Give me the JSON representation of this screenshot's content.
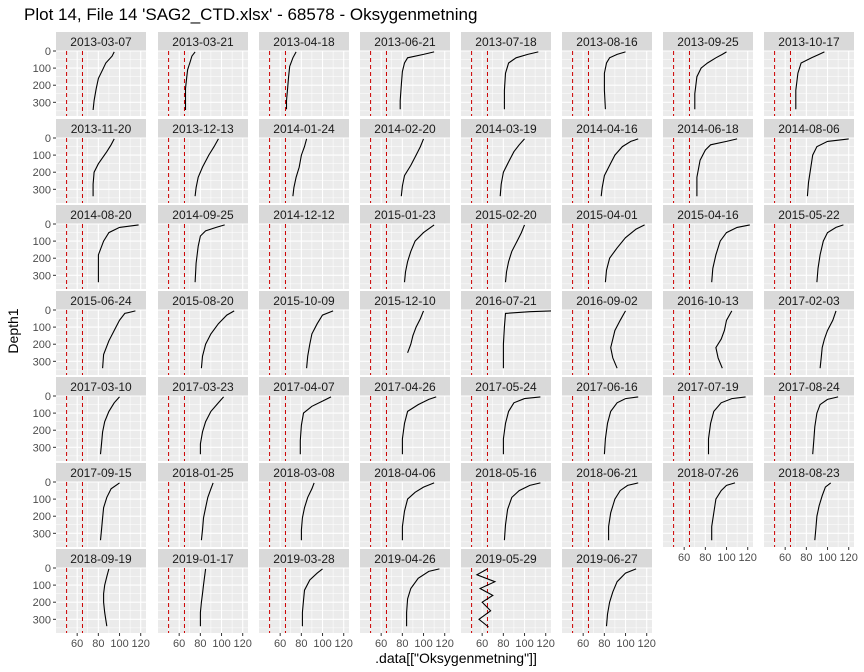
{
  "chart_data": {
    "type": "line",
    "title": "Plot 14, File 14 'SAG2_CTD.xlsx' - 68578  -  Oksygenmetning",
    "xlabel": ".data[[\"Oksygenmetning\"]]",
    "ylabel": "Depth1",
    "xlim": [
      40,
      125
    ],
    "ylim": [
      0,
      380
    ],
    "y_reversed": true,
    "x_ticks": [
      60,
      80,
      100,
      120
    ],
    "y_ticks": [
      0,
      100,
      200,
      300
    ],
    "reference_lines": [
      {
        "x": 50,
        "color": "#cc0000",
        "style": "dashed"
      },
      {
        "x": 65,
        "color": "#cc0000",
        "style": "dashed"
      }
    ],
    "grid": true,
    "layout": {
      "columns": 8,
      "rows": 7
    },
    "colors": {
      "line": "#000000",
      "reference": "#cc0000",
      "panel_bg": "#ebebeb",
      "strip_bg": "#d9d9d9",
      "grid": "#ffffff"
    },
    "panels": [
      {
        "label": "2013-03-07",
        "x": [
          95,
          93,
          87,
          84,
          80,
          78,
          76,
          75
        ],
        "y": [
          5,
          30,
          70,
          110,
          160,
          220,
          290,
          345
        ]
      },
      {
        "label": "2013-03-21",
        "x": [
          75,
          72,
          70,
          68,
          67,
          66,
          66,
          66
        ],
        "y": [
          5,
          30,
          70,
          110,
          160,
          220,
          290,
          345
        ]
      },
      {
        "label": "2013-04-18",
        "x": [
          75,
          72,
          69,
          68,
          67,
          66,
          66
        ],
        "y": [
          5,
          40,
          90,
          150,
          220,
          290,
          340
        ]
      },
      {
        "label": "2013-06-21",
        "x": [
          110,
          100,
          85,
          82,
          80,
          79,
          78,
          78
        ],
        "y": [
          5,
          20,
          40,
          70,
          120,
          200,
          290,
          340
        ]
      },
      {
        "label": "2013-07-18",
        "x": [
          113,
          103,
          92,
          85,
          82,
          81,
          81
        ],
        "y": [
          5,
          20,
          40,
          70,
          130,
          230,
          340
        ]
      },
      {
        "label": "2013-08-16",
        "x": [
          100,
          92,
          85,
          82,
          80,
          80,
          81
        ],
        "y": [
          5,
          20,
          40,
          70,
          130,
          230,
          340
        ]
      },
      {
        "label": "2013-09-25",
        "x": [
          100,
          96,
          90,
          82,
          76,
          72,
          70,
          70
        ],
        "y": [
          5,
          20,
          40,
          70,
          100,
          150,
          250,
          340
        ]
      },
      {
        "label": "2013-10-17",
        "x": [
          97,
          92,
          85,
          75,
          72,
          70,
          70
        ],
        "y": [
          5,
          20,
          40,
          70,
          130,
          230,
          340
        ]
      },
      {
        "label": "2013-11-20",
        "x": [
          95,
          92,
          88,
          80,
          76,
          75,
          75
        ],
        "y": [
          5,
          40,
          80,
          150,
          200,
          270,
          340
        ]
      },
      {
        "label": "2013-12-13",
        "x": [
          97,
          93,
          88,
          82,
          78,
          76,
          75
        ],
        "y": [
          5,
          50,
          100,
          170,
          230,
          290,
          340
        ]
      },
      {
        "label": "2014-01-24",
        "x": [
          85,
          83,
          80,
          78,
          75,
          73,
          72
        ],
        "y": [
          5,
          50,
          100,
          170,
          230,
          290,
          340
        ]
      },
      {
        "label": "2014-02-20",
        "x": [
          100,
          97,
          93,
          88,
          82,
          80,
          79
        ],
        "y": [
          5,
          50,
          100,
          160,
          220,
          280,
          340
        ]
      },
      {
        "label": "2014-03-19",
        "x": [
          100,
          95,
          90,
          85,
          80,
          78,
          77
        ],
        "y": [
          5,
          40,
          80,
          140,
          200,
          270,
          340
        ]
      },
      {
        "label": "2014-04-16",
        "x": [
          112,
          105,
          97,
          90,
          85,
          80,
          78,
          77
        ],
        "y": [
          5,
          20,
          50,
          100,
          160,
          220,
          290,
          340
        ]
      },
      {
        "label": "2014-06-18",
        "x": [
          110,
          100,
          85,
          80,
          75,
          72,
          72
        ],
        "y": [
          5,
          20,
          40,
          70,
          130,
          230,
          340
        ]
      },
      {
        "label": "2014-08-06",
        "x": [
          120,
          100,
          90,
          86,
          84,
          82,
          81
        ],
        "y": [
          5,
          20,
          50,
          100,
          180,
          260,
          340
        ]
      },
      {
        "label": "2014-08-20",
        "x": [
          118,
          100,
          90,
          85,
          80,
          80,
          80
        ],
        "y": [
          5,
          20,
          50,
          100,
          180,
          260,
          340
        ]
      },
      {
        "label": "2014-09-25",
        "x": [
          103,
          95,
          85,
          80,
          78,
          76,
          75
        ],
        "y": [
          5,
          20,
          40,
          70,
          130,
          230,
          340
        ]
      },
      {
        "label": "2014-12-12",
        "x": [],
        "y": []
      },
      {
        "label": "2015-01-23",
        "x": [
          110,
          100,
          92,
          88,
          85,
          83,
          82
        ],
        "y": [
          5,
          50,
          100,
          160,
          220,
          280,
          340
        ]
      },
      {
        "label": "2015-02-20",
        "x": [
          100,
          97,
          93,
          88,
          85,
          83,
          82
        ],
        "y": [
          5,
          50,
          100,
          160,
          220,
          280,
          340
        ]
      },
      {
        "label": "2015-04-01",
        "x": [
          118,
          110,
          100,
          92,
          85,
          82,
          81
        ],
        "y": [
          5,
          30,
          80,
          140,
          200,
          270,
          340
        ]
      },
      {
        "label": "2015-04-16",
        "x": [
          122,
          110,
          100,
          94,
          90,
          87,
          86
        ],
        "y": [
          5,
          20,
          50,
          100,
          180,
          260,
          340
        ]
      },
      {
        "label": "2015-05-22",
        "x": [
          115,
          108,
          100,
          96,
          93,
          91,
          90
        ],
        "y": [
          5,
          20,
          50,
          100,
          180,
          260,
          340
        ]
      },
      {
        "label": "2015-06-24",
        "x": [
          115,
          105,
          100,
          95,
          90,
          85,
          84
        ],
        "y": [
          5,
          20,
          60,
          120,
          180,
          260,
          340
        ]
      },
      {
        "label": "2015-08-20",
        "x": [
          112,
          105,
          97,
          90,
          85,
          82,
          81
        ],
        "y": [
          5,
          30,
          80,
          140,
          200,
          270,
          340
        ]
      },
      {
        "label": "2015-10-09",
        "x": [
          110,
          100,
          95,
          90,
          88,
          86,
          85
        ],
        "y": [
          5,
          30,
          80,
          140,
          200,
          270,
          340
        ]
      },
      {
        "label": "2015-12-10",
        "x": [
          100,
          97,
          93,
          90,
          88,
          85
        ],
        "y": [
          5,
          50,
          100,
          150,
          200,
          250
        ]
      },
      {
        "label": "2016-07-21",
        "x": [
          125,
          105,
          82,
          81,
          80,
          80
        ],
        "y": [
          5,
          10,
          20,
          100,
          200,
          340
        ]
      },
      {
        "label": "2016-09-02",
        "x": [
          100,
          95,
          90,
          88,
          86,
          88,
          92
        ],
        "y": [
          5,
          60,
          120,
          170,
          220,
          280,
          340
        ]
      },
      {
        "label": "2016-10-13",
        "x": [
          105,
          100,
          98,
          95,
          90,
          92,
          96
        ],
        "y": [
          5,
          60,
          120,
          170,
          220,
          280,
          340
        ]
      },
      {
        "label": "2017-02-03",
        "x": [
          108,
          105,
          100,
          97,
          95,
          94,
          93
        ],
        "y": [
          5,
          60,
          120,
          170,
          220,
          280,
          340
        ]
      },
      {
        "label": "2017-03-10",
        "x": [
          100,
          95,
          90,
          86,
          84,
          83,
          82
        ],
        "y": [
          5,
          40,
          90,
          150,
          210,
          280,
          340
        ]
      },
      {
        "label": "2017-03-23",
        "x": [
          102,
          97,
          90,
          85,
          82,
          80,
          80
        ],
        "y": [
          5,
          40,
          90,
          150,
          210,
          280,
          340
        ]
      },
      {
        "label": "2017-04-07",
        "x": [
          108,
          100,
          90,
          82,
          80,
          79,
          79
        ],
        "y": [
          5,
          30,
          60,
          100,
          170,
          260,
          340
        ]
      },
      {
        "label": "2017-04-26",
        "x": [
          112,
          105,
          95,
          85,
          82,
          80,
          80
        ],
        "y": [
          5,
          20,
          50,
          90,
          160,
          250,
          340
        ]
      },
      {
        "label": "2017-05-24",
        "x": [
          115,
          100,
          90,
          85,
          82,
          80,
          80
        ],
        "y": [
          5,
          15,
          40,
          90,
          160,
          250,
          340
        ]
      },
      {
        "label": "2017-06-16",
        "x": [
          112,
          100,
          92,
          86,
          83,
          81,
          80
        ],
        "y": [
          5,
          15,
          40,
          90,
          160,
          250,
          340
        ]
      },
      {
        "label": "2017-07-19",
        "x": [
          118,
          105,
          95,
          88,
          85,
          83,
          83
        ],
        "y": [
          5,
          15,
          40,
          90,
          160,
          250,
          340
        ]
      },
      {
        "label": "2017-08-24",
        "x": [
          110,
          100,
          93,
          90,
          88,
          87,
          86
        ],
        "y": [
          5,
          20,
          50,
          100,
          180,
          260,
          340
        ]
      },
      {
        "label": "2017-09-15",
        "x": [
          100,
          92,
          88,
          85,
          84,
          83,
          82
        ],
        "y": [
          5,
          40,
          90,
          150,
          210,
          280,
          340
        ]
      },
      {
        "label": "2018-01-25",
        "x": [
          92,
          90,
          87,
          85,
          83,
          82,
          81
        ],
        "y": [
          5,
          40,
          90,
          150,
          210,
          280,
          340
        ]
      },
      {
        "label": "2018-03-08",
        "x": [
          92,
          90,
          86,
          83,
          81,
          80,
          80
        ],
        "y": [
          5,
          40,
          90,
          150,
          210,
          280,
          340
        ]
      },
      {
        "label": "2018-04-06",
        "x": [
          110,
          100,
          92,
          85,
          82,
          80,
          80
        ],
        "y": [
          5,
          30,
          60,
          100,
          170,
          260,
          340
        ]
      },
      {
        "label": "2018-05-16",
        "x": [
          115,
          105,
          95,
          88,
          84,
          82,
          81
        ],
        "y": [
          5,
          20,
          50,
          90,
          160,
          250,
          340
        ]
      },
      {
        "label": "2018-06-21",
        "x": [
          112,
          102,
          95,
          90,
          86,
          84,
          84
        ],
        "y": [
          5,
          20,
          50,
          100,
          180,
          260,
          340
        ]
      },
      {
        "label": "2018-07-26",
        "x": [
          108,
          100,
          95,
          90,
          88,
          86,
          86
        ],
        "y": [
          5,
          20,
          50,
          100,
          180,
          260,
          340
        ]
      },
      {
        "label": "2018-08-23",
        "x": [
          103,
          98,
          95,
          92,
          90,
          89,
          88
        ],
        "y": [
          5,
          30,
          80,
          140,
          200,
          270,
          340
        ]
      },
      {
        "label": "2018-09-19",
        "x": [
          90,
          88,
          86,
          85,
          85,
          86,
          88
        ],
        "y": [
          5,
          50,
          100,
          150,
          200,
          260,
          340
        ]
      },
      {
        "label": "2019-01-17",
        "x": [
          85,
          84,
          83,
          82,
          81,
          80,
          80
        ],
        "y": [
          5,
          50,
          100,
          150,
          200,
          260,
          340
        ]
      },
      {
        "label": "2019-03-28",
        "x": [
          100,
          95,
          88,
          83,
          82,
          81,
          81
        ],
        "y": [
          5,
          30,
          70,
          130,
          190,
          260,
          340
        ]
      },
      {
        "label": "2019-04-26",
        "x": [
          115,
          105,
          95,
          88,
          85,
          84,
          84
        ],
        "y": [
          5,
          20,
          60,
          120,
          180,
          260,
          340
        ]
      },
      {
        "label": "2019-05-29",
        "x": [
          65,
          55,
          72,
          58,
          70,
          60,
          68,
          57,
          66
        ],
        "y": [
          5,
          40,
          80,
          120,
          160,
          200,
          250,
          300,
          345
        ]
      },
      {
        "label": "2019-06-27",
        "x": [
          110,
          100,
          92,
          88,
          85,
          83,
          82
        ],
        "y": [
          5,
          30,
          80,
          140,
          200,
          270,
          340
        ]
      }
    ]
  }
}
